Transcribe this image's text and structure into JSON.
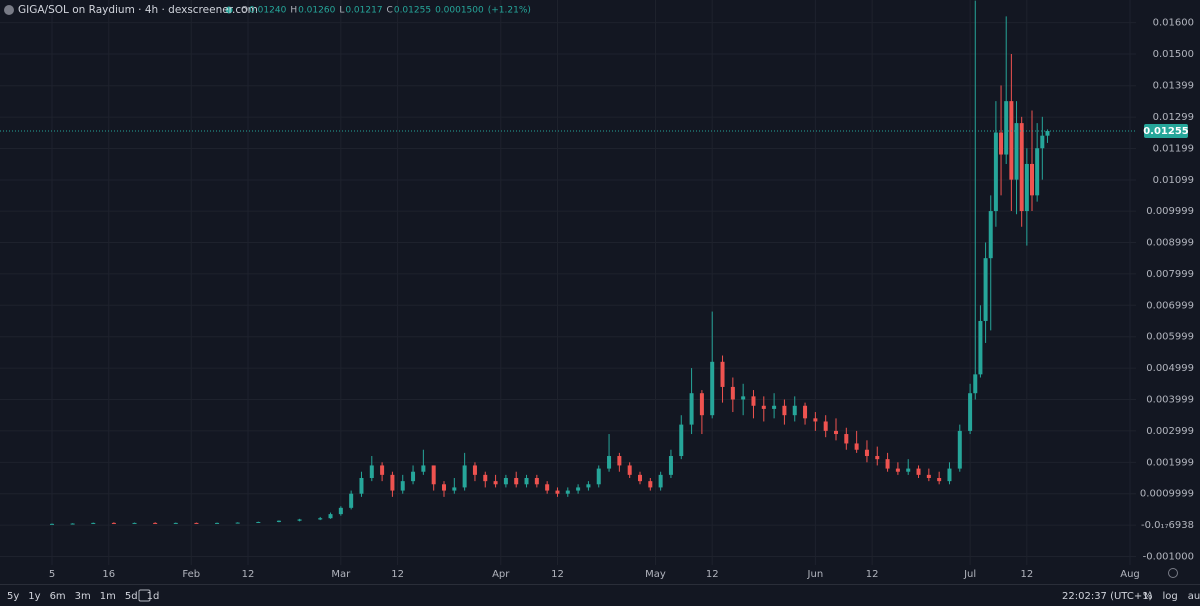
{
  "chart_data": {
    "type": "candlestick",
    "title": "GIGA/SOL on Raydium · 4h · dexscreener.com",
    "ohlc_legend": [
      {
        "label": "O",
        "value": "0.01240"
      },
      {
        "label": "H",
        "value": "0.01260"
      },
      {
        "label": "L",
        "value": "0.01217"
      },
      {
        "label": "C",
        "value": "0.01255"
      }
    ],
    "change": "0.0001500",
    "change_pct": "(+1.21%)",
    "up_color": "#26a69a",
    "down_color": "#ef5350",
    "x": [
      "01-05",
      "01-09",
      "01-13",
      "01-17",
      "01-21",
      "01-25",
      "01-29",
      "02-02",
      "02-06",
      "02-10",
      "02-14",
      "02-18",
      "02-22",
      "02-26",
      "02-28",
      "03-01",
      "03-03",
      "03-05",
      "03-07",
      "03-09",
      "03-11",
      "03-13",
      "03-15",
      "03-17",
      "03-19",
      "03-21",
      "03-23",
      "03-25",
      "03-27",
      "03-29",
      "03-31",
      "04-02",
      "04-04",
      "04-06",
      "04-08",
      "04-10",
      "04-12",
      "04-14",
      "04-16",
      "04-18",
      "04-20",
      "04-22",
      "04-24",
      "04-26",
      "04-28",
      "04-30",
      "05-02",
      "05-04",
      "05-06",
      "05-08",
      "05-10",
      "05-12",
      "05-14",
      "05-16",
      "05-18",
      "05-20",
      "05-22",
      "05-24",
      "05-26",
      "05-28",
      "05-30",
      "06-01",
      "06-03",
      "06-05",
      "06-07",
      "06-09",
      "06-11",
      "06-13",
      "06-15",
      "06-17",
      "06-19",
      "06-21",
      "06-23",
      "06-25",
      "06-27",
      "06-29",
      "07-01",
      "07-02",
      "07-03",
      "07-04",
      "07-05",
      "07-06",
      "07-07",
      "07-08",
      "07-09",
      "07-10",
      "07-11",
      "07-12",
      "07-13",
      "07-14",
      "07-15",
      "07-16"
    ],
    "open": [
      3e-05,
      4e-05,
      5e-05,
      7e-05,
      6e-05,
      7e-05,
      6e-05,
      7e-05,
      6e-05,
      7e-05,
      8e-05,
      0.0001,
      0.00014,
      0.00018,
      0.00022,
      0.00035,
      0.00055,
      0.001,
      0.0015,
      0.0019,
      0.0016,
      0.0011,
      0.0014,
      0.0017,
      0.0019,
      0.0013,
      0.0011,
      0.0012,
      0.0019,
      0.0016,
      0.0014,
      0.0013,
      0.0015,
      0.0013,
      0.0015,
      0.0013,
      0.0011,
      0.001,
      0.0011,
      0.0012,
      0.0013,
      0.0018,
      0.0022,
      0.0019,
      0.0016,
      0.0014,
      0.0012,
      0.0016,
      0.0022,
      0.0032,
      0.0042,
      0.0035,
      0.0052,
      0.0044,
      0.004,
      0.0041,
      0.0038,
      0.0037,
      0.0038,
      0.0035,
      0.0038,
      0.0034,
      0.0033,
      0.003,
      0.0029,
      0.0026,
      0.0024,
      0.0022,
      0.0021,
      0.0018,
      0.0017,
      0.0018,
      0.0016,
      0.0015,
      0.0014,
      0.0018,
      0.003,
      0.0042,
      0.0048,
      0.0065,
      0.0085,
      0.01,
      0.0125,
      0.0118,
      0.0135,
      0.011,
      0.0128,
      0.01,
      0.0115,
      0.0105,
      0.012,
      0.0124
    ],
    "high": [
      5e-05,
      6e-05,
      8e-05,
      9e-05,
      8e-05,
      9e-05,
      8e-05,
      8e-05,
      8e-05,
      9e-05,
      0.00011,
      0.00015,
      0.0002,
      0.00026,
      0.0004,
      0.0006,
      0.0011,
      0.0017,
      0.0022,
      0.002,
      0.0017,
      0.0016,
      0.0019,
      0.0024,
      0.0019,
      0.0014,
      0.0015,
      0.0023,
      0.002,
      0.0017,
      0.0016,
      0.0016,
      0.0017,
      0.0016,
      0.0016,
      0.0014,
      0.0012,
      0.0012,
      0.0013,
      0.0014,
      0.0019,
      0.0029,
      0.0023,
      0.002,
      0.0017,
      0.0015,
      0.0017,
      0.0024,
      0.0035,
      0.005,
      0.0043,
      0.0068,
      0.0054,
      0.0047,
      0.0045,
      0.0043,
      0.0041,
      0.0042,
      0.004,
      0.0041,
      0.0039,
      0.0036,
      0.0035,
      0.0034,
      0.0031,
      0.003,
      0.0027,
      0.0025,
      0.0023,
      0.002,
      0.0021,
      0.0019,
      0.0018,
      0.0017,
      0.002,
      0.0032,
      0.0045,
      0.0167,
      0.007,
      0.009,
      0.0105,
      0.0135,
      0.014,
      0.0162,
      0.015,
      0.0135,
      0.013,
      0.012,
      0.0132,
      0.0128,
      0.013,
      0.0126
    ],
    "low": [
      2e-05,
      3e-05,
      4e-05,
      5e-05,
      5e-05,
      5e-05,
      5e-05,
      5e-05,
      5e-05,
      6e-05,
      7e-05,
      9e-05,
      0.00012,
      0.00016,
      0.0002,
      0.0003,
      0.0005,
      0.0009,
      0.0014,
      0.0014,
      0.0009,
      0.001,
      0.0013,
      0.0016,
      0.0011,
      0.0009,
      0.001,
      0.0011,
      0.0014,
      0.0012,
      0.0012,
      0.0012,
      0.0012,
      0.0012,
      0.0012,
      0.001,
      0.0009,
      0.0009,
      0.001,
      0.0011,
      0.0012,
      0.0017,
      0.0017,
      0.0015,
      0.0013,
      0.0011,
      0.0011,
      0.0015,
      0.0021,
      0.0029,
      0.0029,
      0.0034,
      0.0039,
      0.0036,
      0.0035,
      0.0034,
      0.0033,
      0.0034,
      0.0032,
      0.0033,
      0.0032,
      0.003,
      0.0028,
      0.0027,
      0.0024,
      0.0023,
      0.002,
      0.0019,
      0.0017,
      0.0016,
      0.0016,
      0.0015,
      0.0014,
      0.0013,
      0.0013,
      0.0017,
      0.0029,
      0.004,
      0.0047,
      0.0058,
      0.0062,
      0.0095,
      0.0105,
      0.0115,
      0.01,
      0.0099,
      0.0095,
      0.0089,
      0.01,
      0.0103,
      0.011,
      0.01217
    ],
    "close": [
      4e-05,
      5e-05,
      7e-05,
      6e-05,
      7e-05,
      6e-05,
      7e-05,
      6e-05,
      7e-05,
      8e-05,
      0.0001,
      0.00014,
      0.00018,
      0.00022,
      0.00035,
      0.00055,
      0.001,
      0.0015,
      0.0019,
      0.0016,
      0.0011,
      0.0014,
      0.0017,
      0.0019,
      0.0013,
      0.0011,
      0.0012,
      0.0019,
      0.0016,
      0.0014,
      0.0013,
      0.0015,
      0.0013,
      0.0015,
      0.0013,
      0.0011,
      0.001,
      0.0011,
      0.0012,
      0.0013,
      0.0018,
      0.0022,
      0.0019,
      0.0016,
      0.0014,
      0.0012,
      0.0016,
      0.0022,
      0.0032,
      0.0042,
      0.0035,
      0.0052,
      0.0044,
      0.004,
      0.0041,
      0.0038,
      0.0037,
      0.0038,
      0.0035,
      0.0038,
      0.0034,
      0.0033,
      0.003,
      0.0029,
      0.0026,
      0.0024,
      0.0022,
      0.0021,
      0.0018,
      0.0017,
      0.0018,
      0.0016,
      0.0015,
      0.0014,
      0.0018,
      0.003,
      0.0042,
      0.0048,
      0.0065,
      0.0085,
      0.01,
      0.0125,
      0.0118,
      0.0135,
      0.011,
      0.0128,
      0.01,
      0.0115,
      0.0105,
      0.012,
      0.0124,
      0.01255
    ],
    "xlim": [
      "01-05",
      "08-01"
    ],
    "xticks": [
      {
        "value": "01-05",
        "label": "5"
      },
      {
        "value": "01-16",
        "label": "16"
      },
      {
        "value": "02-01",
        "label": "Feb"
      },
      {
        "value": "02-12",
        "label": "12"
      },
      {
        "value": "03-01",
        "label": "Mar"
      },
      {
        "value": "03-12",
        "label": "12"
      },
      {
        "value": "04-01",
        "label": "Apr"
      },
      {
        "value": "04-12",
        "label": "12"
      },
      {
        "value": "05-01",
        "label": "May"
      },
      {
        "value": "05-12",
        "label": "12"
      },
      {
        "value": "06-01",
        "label": "Jun"
      },
      {
        "value": "06-12",
        "label": "12"
      },
      {
        "value": "07-01",
        "label": "Jul"
      },
      {
        "value": "07-12",
        "label": "12"
      },
      {
        "value": "08-01",
        "label": "Aug"
      }
    ],
    "ylim": [
      -0.00127,
      0.01672
    ],
    "yticks": [
      {
        "value": 0.016,
        "label": "0.01600"
      },
      {
        "value": 0.015,
        "label": "0.01500"
      },
      0.01399,
      0.01299,
      0.01199,
      0.01099,
      0.009999,
      0.008999,
      0.007999,
      0.006999,
      0.005999,
      0.004999,
      0.003999,
      0.002999,
      0.001999,
      0.0009999,
      {
        "value": -6.938e-18,
        "label": "-0.0₁₇6938"
      },
      {
        "value": -0.001,
        "label": "-0.001000"
      }
    ],
    "last_price": {
      "value": 0.01255,
      "label": "0.01255"
    },
    "grid": true
  },
  "toolbar": {
    "ranges": [
      "5y",
      "1y",
      "6m",
      "3m",
      "1m",
      "5d",
      "1d"
    ],
    "clock": "22:02:37 (UTC+1)",
    "options": [
      "%",
      "log",
      "auto"
    ]
  }
}
